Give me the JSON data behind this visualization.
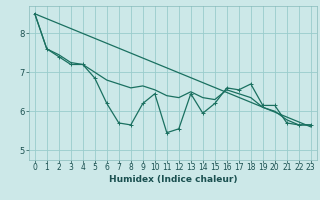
{
  "xlabel": "Humidex (Indice chaleur)",
  "background_color": "#cce8e8",
  "grid_color": "#99cccc",
  "line_color": "#1a7060",
  "xlim": [
    -0.5,
    23.5
  ],
  "ylim": [
    4.75,
    8.7
  ],
  "yticks": [
    5,
    6,
    7,
    8
  ],
  "xticks": [
    0,
    1,
    2,
    3,
    4,
    5,
    6,
    7,
    8,
    9,
    10,
    11,
    12,
    13,
    14,
    15,
    16,
    17,
    18,
    19,
    20,
    21,
    22,
    23
  ],
  "xtick_labels": [
    "0",
    "1",
    "2",
    "3",
    "4",
    "5",
    "6",
    "7",
    "8",
    "9",
    "10",
    "11",
    "12",
    "13",
    "14",
    "15",
    "16",
    "17",
    "18",
    "19",
    "20",
    "21",
    "22",
    "23"
  ],
  "trend_x": [
    0,
    23
  ],
  "trend_y": [
    8.5,
    5.6
  ],
  "series1_x": [
    0,
    1,
    2,
    3,
    4,
    5,
    6,
    7,
    8,
    9,
    10,
    11,
    12,
    13,
    14,
    15,
    16,
    17,
    18,
    19,
    20,
    21,
    22,
    23
  ],
  "series1_y": [
    8.5,
    7.6,
    7.4,
    7.2,
    7.2,
    6.85,
    6.2,
    5.7,
    5.65,
    6.2,
    6.45,
    5.45,
    5.55,
    6.45,
    5.95,
    6.2,
    6.6,
    6.55,
    6.7,
    6.15,
    6.15,
    5.7,
    5.65,
    5.65
  ],
  "series2_y": [
    8.5,
    7.6,
    7.45,
    7.25,
    7.2,
    7.0,
    6.8,
    6.7,
    6.6,
    6.65,
    6.55,
    6.4,
    6.35,
    6.5,
    6.35,
    6.3,
    6.55,
    6.45,
    6.35,
    6.1,
    6.0,
    5.78,
    5.65,
    5.65
  ],
  "xlabel_fontsize": 6.5,
  "tick_fontsize": 5.5
}
